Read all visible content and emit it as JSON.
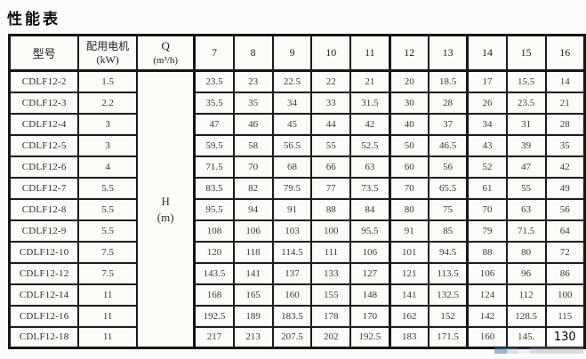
{
  "title": "性能表",
  "table": {
    "header": {
      "model": "型号",
      "motor_line1": "配用电机",
      "motor_line2": "(kW)",
      "q_line1": "Q",
      "q_line2": "(m³/h)",
      "flow_values": [
        "7",
        "8",
        "9",
        "10",
        "11",
        "12",
        "13",
        "14",
        "15",
        "16"
      ]
    },
    "h_label_line1": "H",
    "h_label_line2": "(m)",
    "rows": [
      {
        "model": "CDLF12-2",
        "kw": "1.5",
        "h": [
          "23.5",
          "23",
          "22.5",
          "22",
          "21",
          "20",
          "18.5",
          "17",
          "15.5",
          "14"
        ]
      },
      {
        "model": "CDLF12-3",
        "kw": "2.2",
        "h": [
          "35.5",
          "35",
          "34",
          "33",
          "31.5",
          "30",
          "28",
          "26",
          "23.5",
          "21"
        ]
      },
      {
        "model": "CDLF12-4",
        "kw": "3",
        "h": [
          "47",
          "46",
          "45",
          "44",
          "42",
          "40",
          "37",
          "34",
          "31",
          "28"
        ]
      },
      {
        "model": "CDLF12-5",
        "kw": "3",
        "h": [
          "59.5",
          "58",
          "56.5",
          "55",
          "52.5",
          "50",
          "46.5",
          "43",
          "39",
          "35"
        ]
      },
      {
        "model": "CDLF12-6",
        "kw": "4",
        "h": [
          "71.5",
          "70",
          "68",
          "66",
          "63",
          "60",
          "56",
          "52",
          "47",
          "42"
        ]
      },
      {
        "model": "CDLF12-7",
        "kw": "5.5",
        "h": [
          "83.5",
          "82",
          "79.5",
          "77",
          "73.5",
          "70",
          "65.5",
          "61",
          "55",
          "49"
        ]
      },
      {
        "model": "CDLF12-8",
        "kw": "5.5",
        "h": [
          "95.5",
          "94",
          "91",
          "88",
          "84",
          "80",
          "75",
          "70",
          "63",
          "56"
        ]
      },
      {
        "model": "CDLF12-9",
        "kw": "5.5",
        "h": [
          "108",
          "106",
          "103",
          "100",
          "95.5",
          "91",
          "85",
          "79",
          "71.5",
          "64"
        ]
      },
      {
        "model": "CDLF12-10",
        "kw": "7.5",
        "h": [
          "120",
          "118",
          "114.5",
          "111",
          "106",
          "101",
          "94.5",
          "88",
          "80",
          "72"
        ]
      },
      {
        "model": "CDLF12-12",
        "kw": "7.5",
        "h": [
          "143.5",
          "141",
          "137",
          "133",
          "127",
          "121",
          "113.5",
          "106",
          "96",
          "86"
        ]
      },
      {
        "model": "CDLF12-14",
        "kw": "11",
        "h": [
          "168",
          "165",
          "160",
          "155",
          "148",
          "141",
          "132.5",
          "124",
          "112",
          "100"
        ]
      },
      {
        "model": "CDLF12-16",
        "kw": "11",
        "h": [
          "192.5",
          "189",
          "183.5",
          "178",
          "170",
          "162",
          "152",
          "142",
          "128.5",
          "115"
        ]
      },
      {
        "model": "CDLF12-18",
        "kw": "11",
        "h": [
          "217",
          "213",
          "207.5",
          "202",
          "192.5",
          "183",
          "171.5",
          "160",
          "145.",
          "130"
        ]
      }
    ]
  }
}
